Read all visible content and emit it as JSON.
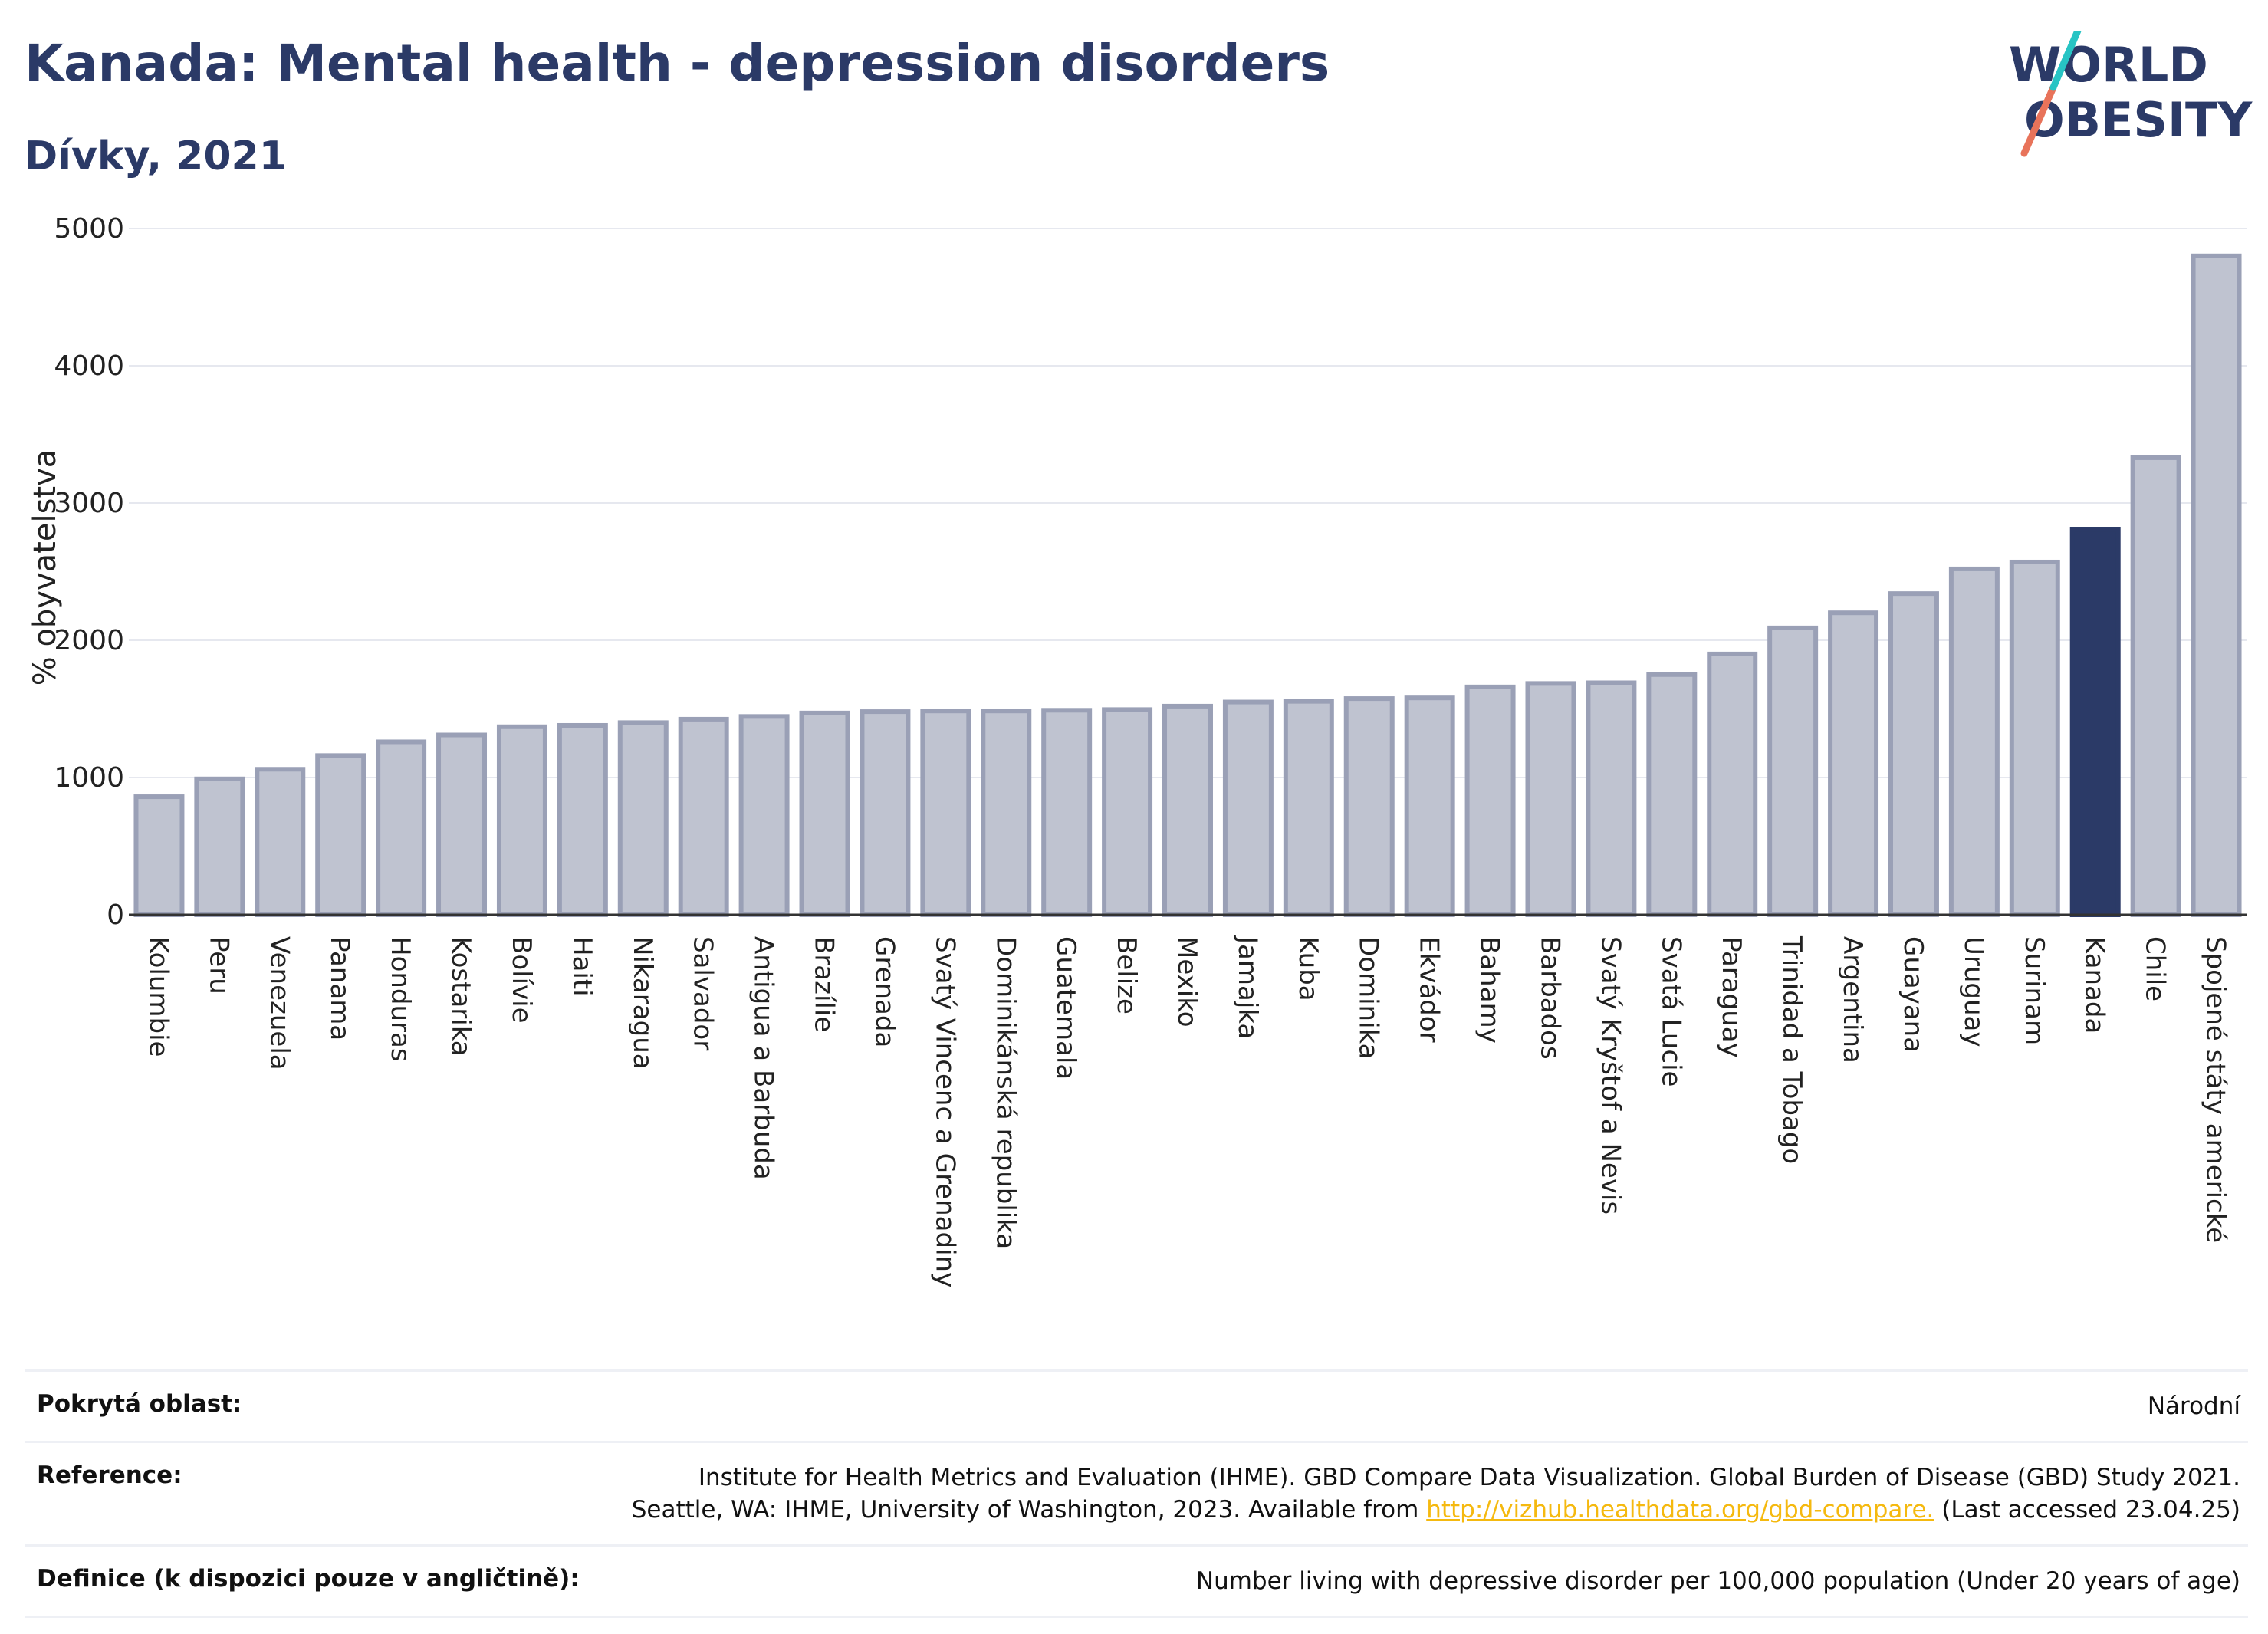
{
  "header": {
    "title": "Kanada: Mental health - depression disorders",
    "subtitle": "Dívky, 2021"
  },
  "logo": {
    "line1": "WORLD",
    "line2": "OBESITY"
  },
  "chart_data": {
    "type": "bar",
    "ylabel": "% obyvatelstva",
    "ylim": [
      0,
      5000
    ],
    "yticks": [
      0,
      1000,
      2000,
      3000,
      4000,
      5000
    ],
    "grid": true,
    "highlight": "Kanada",
    "colors": {
      "default": "#bfc3d0",
      "default_border": "#9aa0b6",
      "highlight": "#2b3a67"
    },
    "categories": [
      "Kolumbie",
      "Peru",
      "Venezuela",
      "Panama",
      "Honduras",
      "Kostarika",
      "Bolívie",
      "Haiti",
      "Nikaragua",
      "Salvador",
      "Antigua a Barbuda",
      "Brazílie",
      "Grenada",
      "Svatý Vincenc a Grenadiny",
      "Dominikánská republika",
      "Guatemala",
      "Belize",
      "Mexiko",
      "Jamajka",
      "Kuba",
      "Dominika",
      "Ekvádor",
      "Bahamy",
      "Barbados",
      "Svatý Kryštof a Nevis",
      "Svatá Lucie",
      "Paraguay",
      "Trinidad a Tobago",
      "Argentina",
      "Guayana",
      "Uruguay",
      "Surinam",
      "Kanada",
      "Chile",
      "Spojené státy americké"
    ],
    "values": [
      860,
      990,
      1060,
      1160,
      1260,
      1310,
      1370,
      1380,
      1400,
      1425,
      1445,
      1470,
      1480,
      1485,
      1485,
      1490,
      1495,
      1520,
      1550,
      1555,
      1575,
      1580,
      1660,
      1685,
      1690,
      1750,
      1900,
      2090,
      2200,
      2340,
      2520,
      2570,
      2810,
      3330,
      4800
    ]
  },
  "footer": {
    "coverage_label": "Pokrytá oblast:",
    "coverage_value": "Národní",
    "reference_label": "Reference:",
    "reference_line1": "Institute for Health Metrics and Evaluation (IHME). GBD Compare Data Visualization. Global Burden of Disease (GBD) Study 2021.",
    "reference_line2_pre": "Seattle, WA: IHME, University of Washington, 2023. Available from ",
    "reference_link": "http://vizhub.healthdata.org/gbd-compare.",
    "reference_line2_post": " (Last accessed 23.04.25)",
    "definition_label": "Definice (k dispozici pouze v angličtině):",
    "definition_value": "Number living with depressive disorder per 100,000 population (Under 20 years of age)"
  }
}
